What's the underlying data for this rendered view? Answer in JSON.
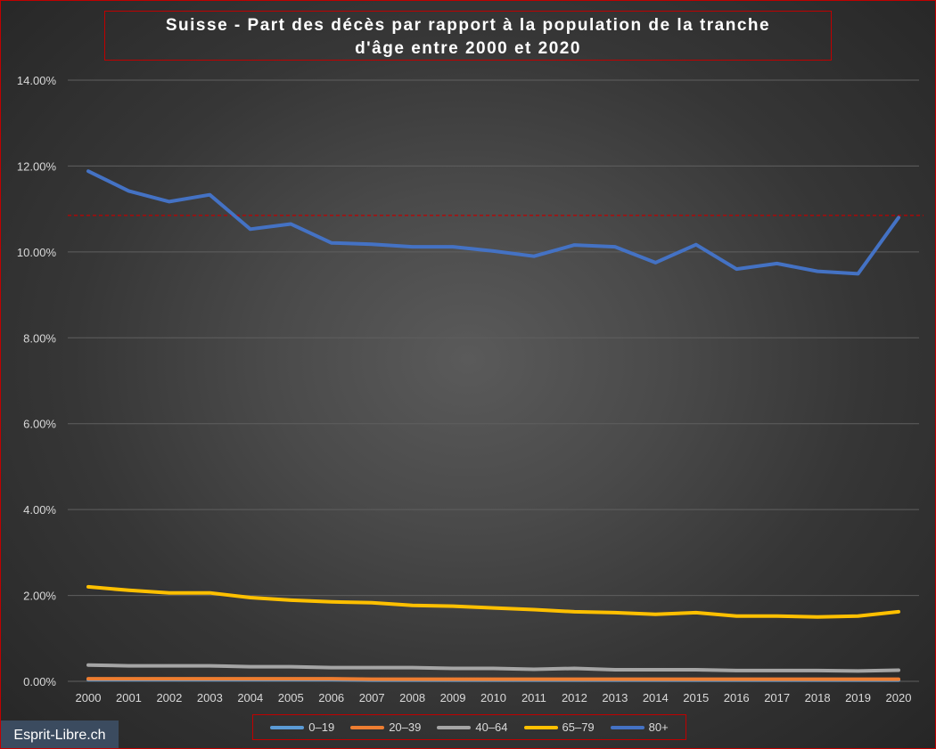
{
  "chart_data": {
    "type": "line",
    "title_line1": "Suisse - Part des décès par rapport à la population  de la tranche",
    "title_line2": "d'âge entre 2000 et 2020",
    "x": [
      "2000",
      "2001",
      "2002",
      "2003",
      "2004",
      "2005",
      "2006",
      "2007",
      "2008",
      "2009",
      "2010",
      "2011",
      "2012",
      "2013",
      "2014",
      "2015",
      "2016",
      "2017",
      "2018",
      "2019",
      "2020"
    ],
    "y_ticks": [
      "0.00%",
      "2.00%",
      "4.00%",
      "6.00%",
      "8.00%",
      "10.00%",
      "12.00%",
      "14.00%"
    ],
    "ylim": [
      0,
      14
    ],
    "grid": true,
    "reference_line": 10.85,
    "legend_position": "bottom",
    "series": [
      {
        "name": "0–19",
        "color": "#5b9bd5",
        "values": [
          0.04,
          0.04,
          0.04,
          0.04,
          0.04,
          0.04,
          0.04,
          0.03,
          0.03,
          0.03,
          0.03,
          0.03,
          0.03,
          0.03,
          0.03,
          0.03,
          0.03,
          0.03,
          0.03,
          0.03,
          0.03
        ]
      },
      {
        "name": "20–39",
        "color": "#ed7d31",
        "values": [
          0.06,
          0.06,
          0.06,
          0.06,
          0.06,
          0.06,
          0.06,
          0.05,
          0.05,
          0.05,
          0.05,
          0.05,
          0.05,
          0.05,
          0.05,
          0.05,
          0.05,
          0.05,
          0.05,
          0.05,
          0.05
        ]
      },
      {
        "name": "40–64",
        "color": "#a5a5a5",
        "values": [
          0.38,
          0.36,
          0.36,
          0.36,
          0.34,
          0.34,
          0.32,
          0.32,
          0.32,
          0.3,
          0.3,
          0.28,
          0.3,
          0.27,
          0.27,
          0.27,
          0.25,
          0.25,
          0.25,
          0.24,
          0.26
        ]
      },
      {
        "name": "65–79",
        "color": "#ffc000",
        "values": [
          2.2,
          2.12,
          2.06,
          2.06,
          1.95,
          1.89,
          1.85,
          1.83,
          1.77,
          1.75,
          1.71,
          1.67,
          1.62,
          1.6,
          1.56,
          1.6,
          1.52,
          1.52,
          1.5,
          1.52,
          1.62
        ]
      },
      {
        "name": "80+",
        "color": "#4472c4",
        "values": [
          11.88,
          11.42,
          11.17,
          11.33,
          10.53,
          10.65,
          10.21,
          10.18,
          10.12,
          10.12,
          10.02,
          9.9,
          10.16,
          10.12,
          9.75,
          10.17,
          9.6,
          9.73,
          9.55,
          9.49,
          10.8
        ]
      }
    ]
  },
  "watermark": "Esprit-Libre.ch",
  "colors": {
    "frame_border": "#c00000",
    "reference_line": "#c00000",
    "gridline": "#5f5f5f",
    "axis_text": "#d9d9d9"
  }
}
